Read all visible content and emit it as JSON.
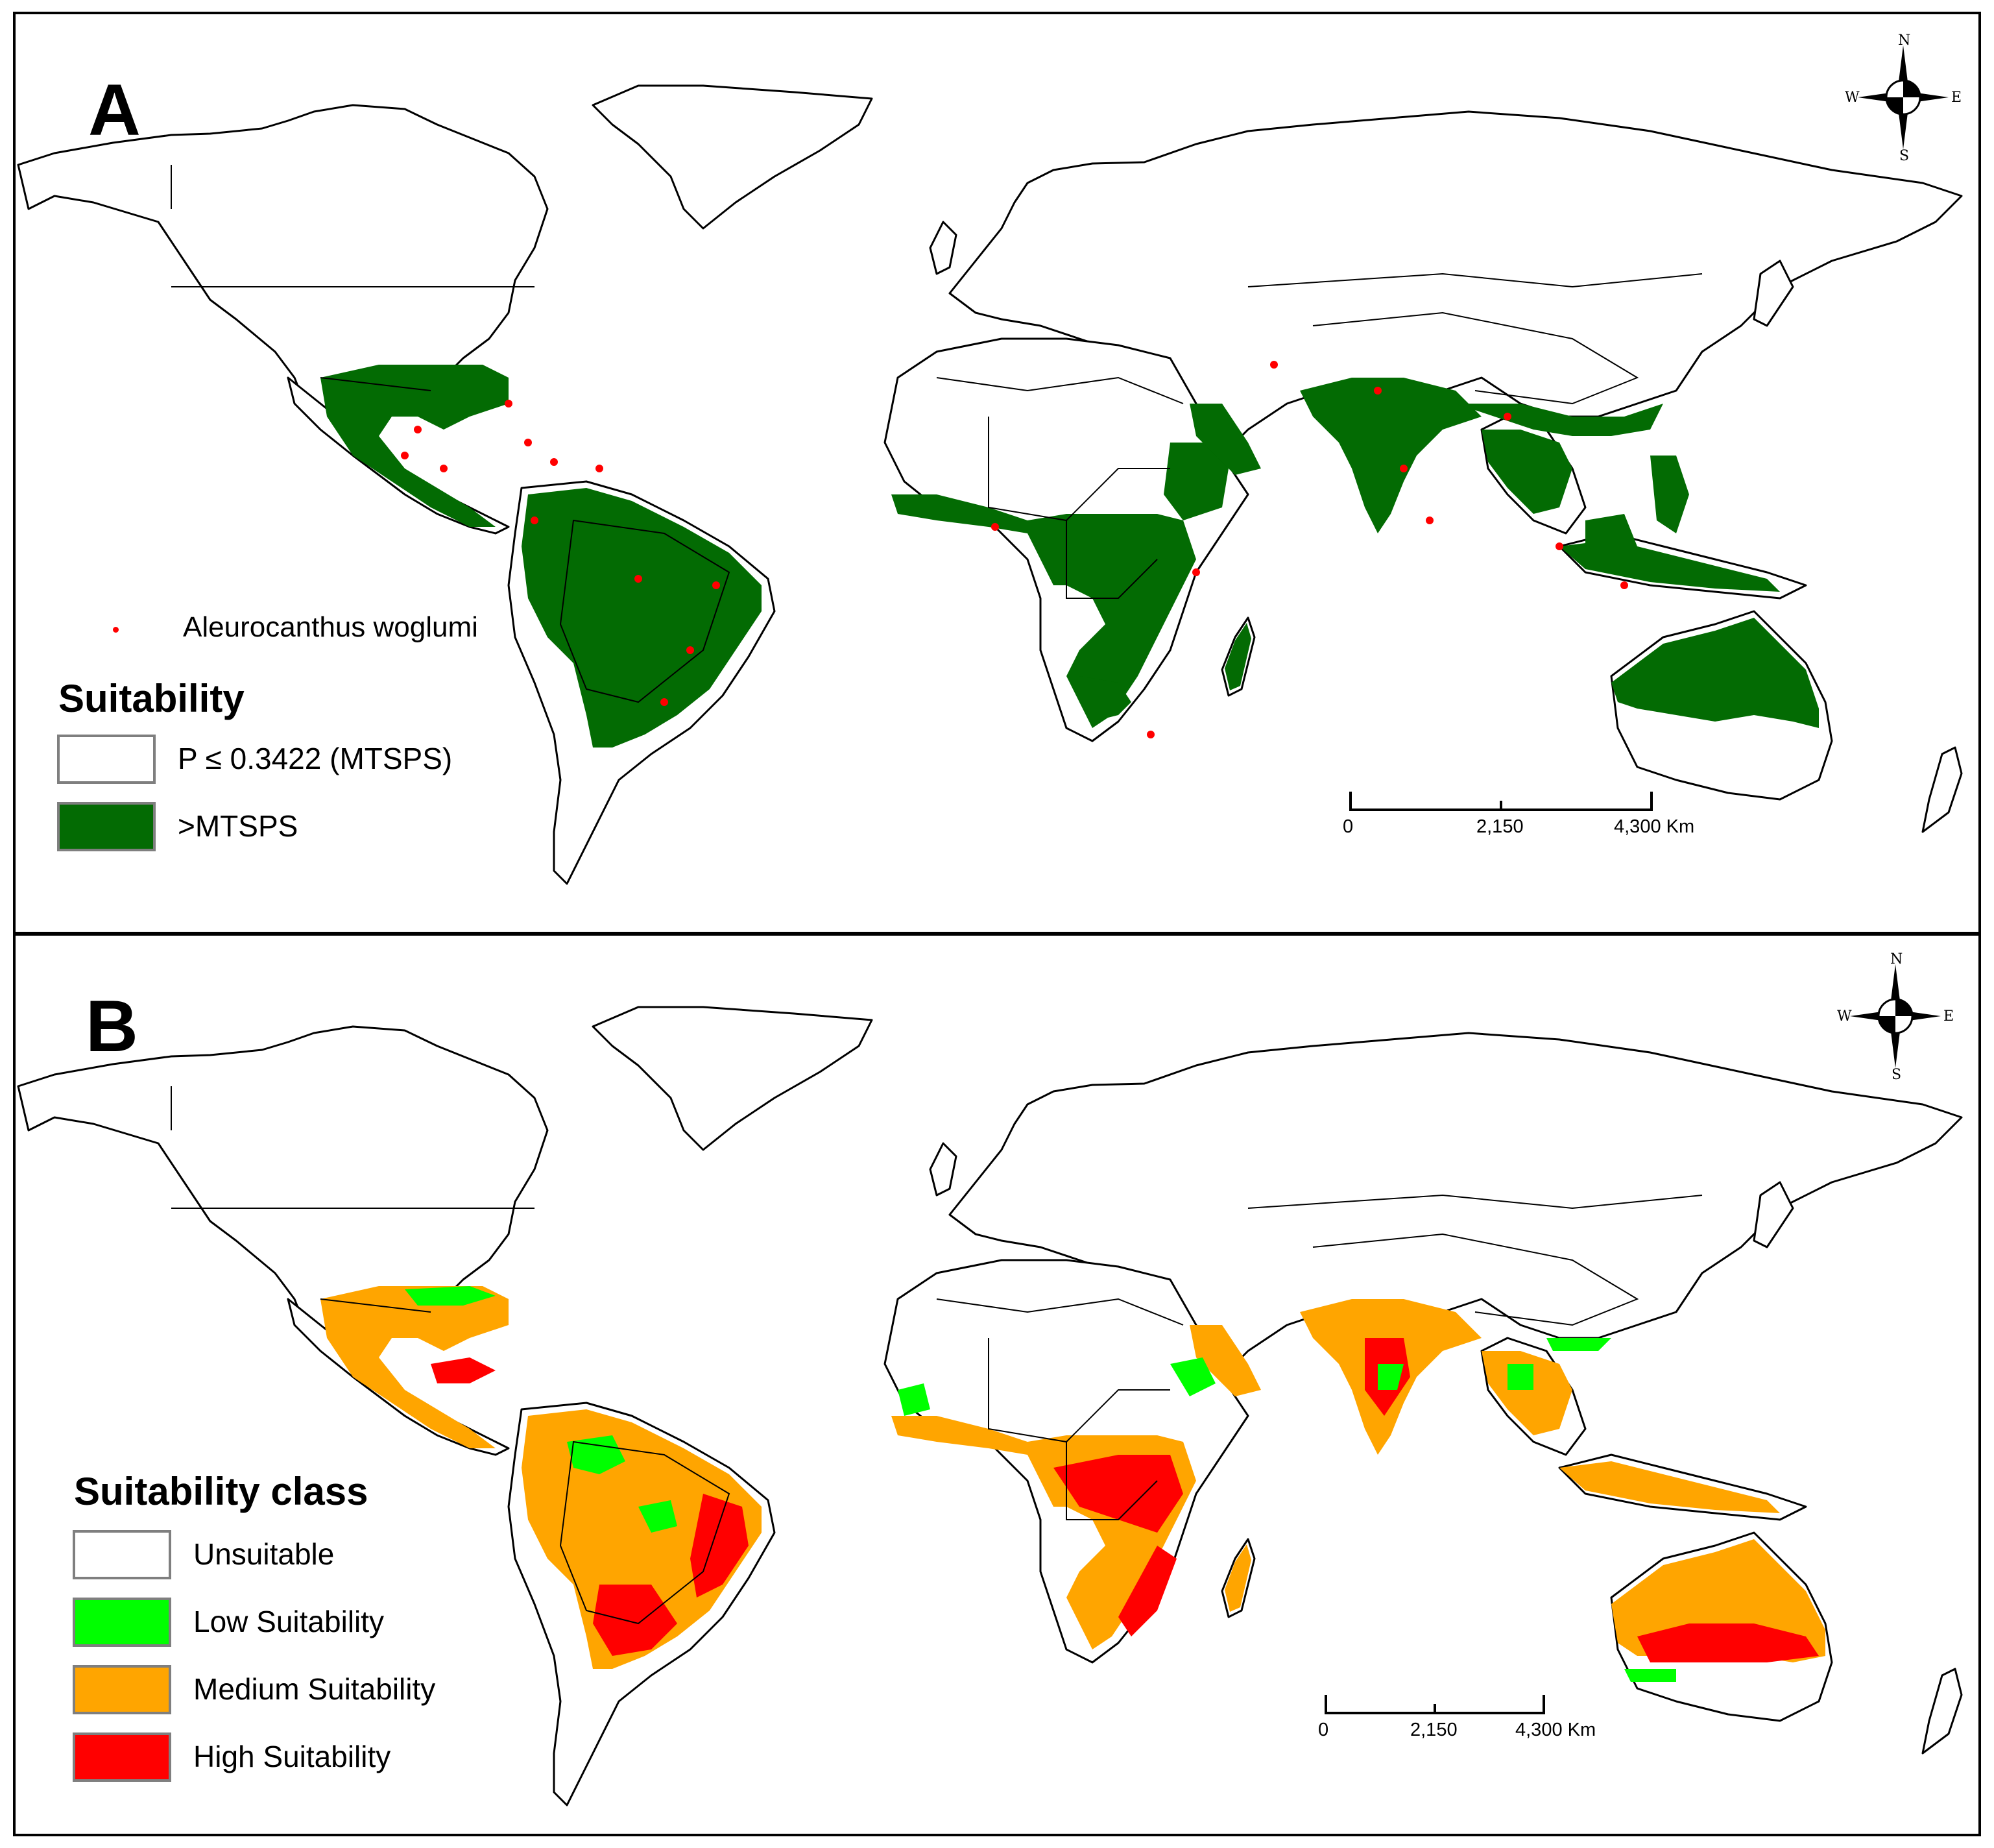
{
  "colors": {
    "green_mtsps": "#036b03",
    "occurrence": "#ff0000",
    "unsuitable": "#ffffff",
    "low": "#00ff00",
    "medium": "#ffa500",
    "high": "#ff0000",
    "land_outline": "#000000"
  },
  "panel_a": {
    "letter": "A",
    "occurrence_legend": "Aleurocanthus woglumi",
    "legend_title": "Suitability",
    "legend_items": [
      {
        "label": "P ≤ 0.3422 (MTSPS)",
        "color": "#ffffff"
      },
      {
        "label": ">MTSPS",
        "color": "#036b03"
      }
    ],
    "scale": {
      "ticks": [
        "0",
        "2,150",
        "4,300 Km"
      ]
    },
    "compass": {
      "n": "N",
      "s": "S",
      "e": "E",
      "w": "W"
    }
  },
  "panel_b": {
    "letter": "B",
    "legend_title": "Suitability class",
    "legend_items": [
      {
        "label": "Unsuitable",
        "color": "#ffffff"
      },
      {
        "label": "Low Suitability",
        "color": "#00ff00"
      },
      {
        "label": "Medium Suitability",
        "color": "#ffa500"
      },
      {
        "label": "High Suitability",
        "color": "#ff0000"
      }
    ],
    "scale": {
      "ticks": [
        "0",
        "2,150",
        "4,300 Km"
      ]
    },
    "compass": {
      "n": "N",
      "s": "S",
      "e": "E",
      "w": "W"
    }
  }
}
